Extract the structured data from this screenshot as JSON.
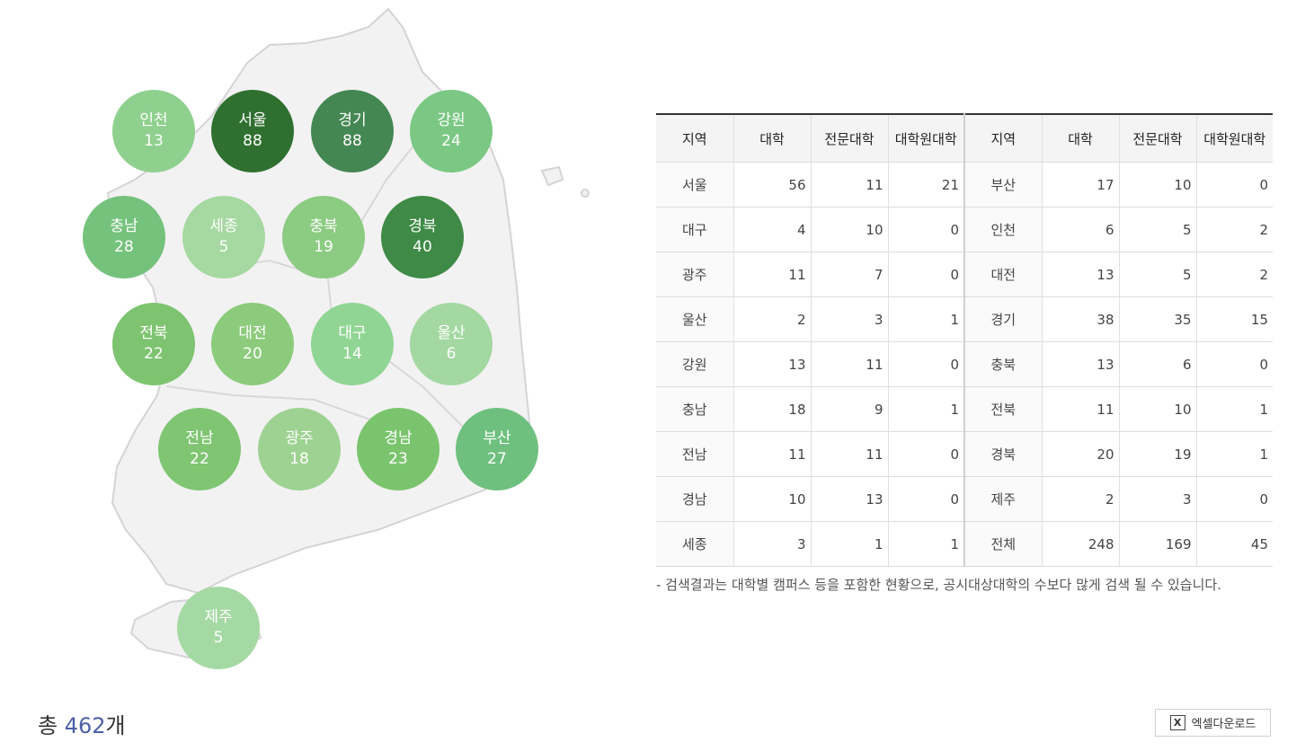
{
  "regions": [
    {
      "name": "인천",
      "count": "13",
      "color": "#8fd08f"
    },
    {
      "name": "서울",
      "count": "88",
      "color": "#2f7030"
    },
    {
      "name": "경기",
      "count": "88",
      "color": "#448752"
    },
    {
      "name": "강원",
      "count": "24",
      "color": "#7bc884"
    },
    {
      "name": "충남",
      "count": "28",
      "color": "#75c27d"
    },
    {
      "name": "세종",
      "count": "5",
      "color": "#a6d8a1"
    },
    {
      "name": "충북",
      "count": "19",
      "color": "#8ccb82"
    },
    {
      "name": "경북",
      "count": "40",
      "color": "#3e8a46"
    },
    {
      "name": "전북",
      "count": "22",
      "color": "#7ec470"
    },
    {
      "name": "대전",
      "count": "20",
      "color": "#8ccb7c"
    },
    {
      "name": "대구",
      "count": "14",
      "color": "#90d593"
    },
    {
      "name": "울산",
      "count": "6",
      "color": "#a4d8a2"
    },
    {
      "name": "전남",
      "count": "22",
      "color": "#7fc572"
    },
    {
      "name": "광주",
      "count": "18",
      "color": "#9ed292"
    },
    {
      "name": "경남",
      "count": "23",
      "color": "#7bc46e"
    },
    {
      "name": "부산",
      "count": "27",
      "color": "#6fc07f"
    },
    {
      "name": "제주",
      "count": "5",
      "color": "#a5d9a3"
    }
  ],
  "table": {
    "headers": [
      "지역",
      "대학",
      "전문대학",
      "대학원대학",
      "지역",
      "대학",
      "전문대학",
      "대학원대학"
    ],
    "rows": [
      [
        "서울",
        "56",
        "11",
        "21",
        "부산",
        "17",
        "10",
        "0"
      ],
      [
        "대구",
        "4",
        "10",
        "0",
        "인천",
        "6",
        "5",
        "2"
      ],
      [
        "광주",
        "11",
        "7",
        "0",
        "대전",
        "13",
        "5",
        "2"
      ],
      [
        "울산",
        "2",
        "3",
        "1",
        "경기",
        "38",
        "35",
        "15"
      ],
      [
        "강원",
        "13",
        "11",
        "0",
        "충북",
        "13",
        "6",
        "0"
      ],
      [
        "충남",
        "18",
        "9",
        "1",
        "전북",
        "11",
        "10",
        "1"
      ],
      [
        "전남",
        "11",
        "11",
        "0",
        "경북",
        "20",
        "19",
        "1"
      ],
      [
        "경남",
        "10",
        "13",
        "0",
        "제주",
        "2",
        "3",
        "0"
      ],
      [
        "세종",
        "3",
        "1",
        "1",
        "전체",
        "248",
        "169",
        "45"
      ]
    ]
  },
  "note": "- 검색결과는 대학별 캠퍼스 등을 포함한 현황으로, 공시대상대학의 수보다 많게 검색 될 수 있습니다.",
  "total": {
    "prefix": "총",
    "number": "462",
    "suffix": "개"
  },
  "excel": {
    "label": "엑셀다운로드",
    "icon": "excel-x-icon"
  }
}
